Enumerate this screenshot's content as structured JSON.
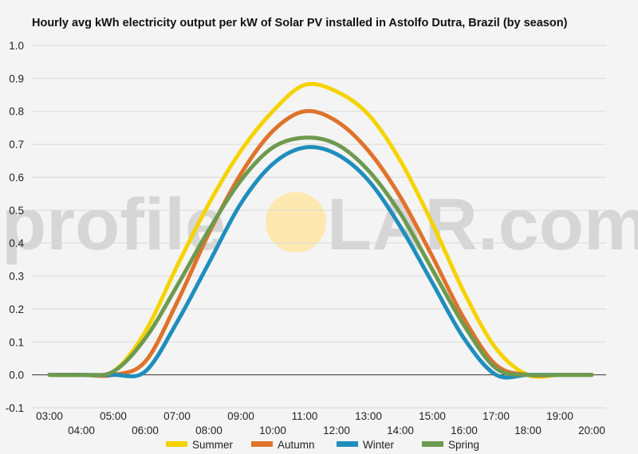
{
  "chart_data": {
    "type": "line",
    "title": "Hourly avg kWh electricity output per kW of Solar PV installed in Astolfo Dutra, Brazil (by season)",
    "xlabel": "",
    "ylabel": "",
    "x": [
      "03:00",
      "04:00",
      "05:00",
      "06:00",
      "07:00",
      "08:00",
      "09:00",
      "10:00",
      "11:00",
      "12:00",
      "13:00",
      "14:00",
      "15:00",
      "16:00",
      "17:00",
      "18:00",
      "19:00",
      "20:00"
    ],
    "ylim": [
      -0.1,
      1.0
    ],
    "yticks": [
      "-0.1",
      "0.0",
      "0.1",
      "0.2",
      "0.3",
      "0.4",
      "0.5",
      "0.6",
      "0.7",
      "0.8",
      "0.9",
      "1.0"
    ],
    "grid": true,
    "legend_position": "bottom",
    "series": [
      {
        "name": "Summer",
        "color": "#f5d300",
        "values": [
          0.0,
          0.0,
          0.01,
          0.13,
          0.33,
          0.52,
          0.68,
          0.8,
          0.88,
          0.86,
          0.79,
          0.65,
          0.46,
          0.25,
          0.08,
          0.0,
          0.0,
          0.0
        ]
      },
      {
        "name": "Autumn",
        "color": "#e0722a",
        "values": [
          0.0,
          0.0,
          0.0,
          0.04,
          0.22,
          0.43,
          0.61,
          0.74,
          0.8,
          0.77,
          0.68,
          0.54,
          0.36,
          0.17,
          0.03,
          0.0,
          0.0,
          0.0
        ]
      },
      {
        "name": "Winter",
        "color": "#1f8ebd",
        "values": [
          0.0,
          0.0,
          0.0,
          0.01,
          0.16,
          0.34,
          0.52,
          0.64,
          0.69,
          0.67,
          0.59,
          0.45,
          0.28,
          0.11,
          0.0,
          0.0,
          0.0,
          0.0
        ]
      },
      {
        "name": "Spring",
        "color": "#6e9a4f",
        "values": [
          0.0,
          0.0,
          0.01,
          0.11,
          0.27,
          0.44,
          0.59,
          0.69,
          0.72,
          0.7,
          0.62,
          0.49,
          0.32,
          0.15,
          0.02,
          0.0,
          0.0,
          0.0
        ]
      }
    ]
  },
  "watermark": {
    "left": "profile",
    "right": "LAR.com",
    "sun_color": "#fde9b0"
  },
  "colors": {
    "background": "#f4f4f4",
    "grid": "#d9d9d9",
    "zero_line": "#333333"
  }
}
